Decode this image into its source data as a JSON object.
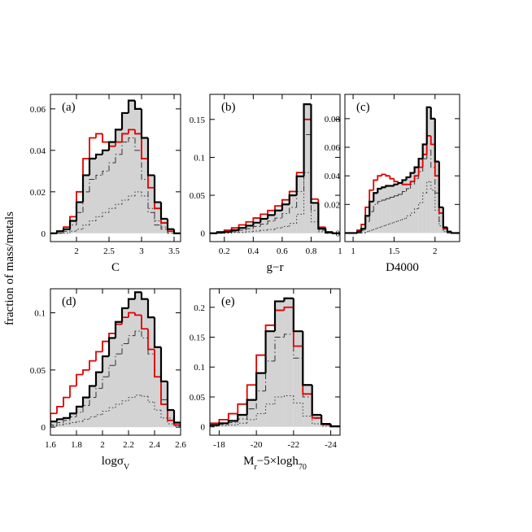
{
  "ylabel": "fraction of mass/metals",
  "chart_data": [
    {
      "type": "histogram",
      "label": "(a)",
      "xlabel": [
        "C"
      ],
      "bins": [
        1.6,
        1.7,
        1.8,
        1.9,
        2.0,
        2.1,
        2.2,
        2.3,
        2.4,
        2.5,
        2.6,
        2.7,
        2.8,
        2.9,
        3.0,
        3.1,
        3.2,
        3.3,
        3.4,
        3.5,
        3.6
      ],
      "xlim": [
        1.6,
        3.6
      ],
      "xticks": [
        2,
        2.5,
        3,
        3.5
      ],
      "ylim": [
        -0.004,
        0.067
      ],
      "yticks": [
        0,
        0.02,
        0.04,
        0.06
      ],
      "series": [
        {
          "color": "#000000",
          "fill": "#d3d3d3",
          "style": "thick",
          "values": [
            0,
            0.001,
            0.002,
            0.006,
            0.015,
            0.028,
            0.036,
            0.038,
            0.04,
            0.044,
            0.05,
            0.058,
            0.064,
            0.06,
            0.046,
            0.028,
            0.015,
            0.007,
            0.002,
            0
          ]
        },
        {
          "color": "#e00000",
          "style": "solid",
          "values": [
            0,
            0.001,
            0.003,
            0.008,
            0.02,
            0.036,
            0.046,
            0.048,
            0.044,
            0.042,
            0.044,
            0.048,
            0.05,
            0.048,
            0.036,
            0.022,
            0.012,
            0.005,
            0.001,
            0
          ]
        },
        {
          "color": "#333333",
          "style": "dashdot",
          "values": [
            0,
            0,
            0.001,
            0.004,
            0.01,
            0.02,
            0.026,
            0.028,
            0.03,
            0.034,
            0.038,
            0.044,
            0.046,
            0.04,
            0.026,
            0.01,
            0.004,
            0.002,
            0,
            0
          ]
        },
        {
          "color": "#333333",
          "style": "dotted",
          "values": [
            0,
            0,
            0,
            0.001,
            0.002,
            0.004,
            0.006,
            0.008,
            0.01,
            0.012,
            0.014,
            0.016,
            0.018,
            0.02,
            0.018,
            0.012,
            0.006,
            0.003,
            0.001,
            0
          ]
        }
      ]
    },
    {
      "type": "histogram",
      "label": "(b)",
      "xlabel": [
        "g−r"
      ],
      "bins": [
        0.1,
        0.15,
        0.2,
        0.25,
        0.3,
        0.35,
        0.4,
        0.45,
        0.5,
        0.55,
        0.6,
        0.65,
        0.7,
        0.75,
        0.8,
        0.85,
        0.9,
        0.95,
        1.0
      ],
      "xlim": [
        0.1,
        1.0
      ],
      "xticks": [
        0.2,
        0.4,
        0.6,
        0.8,
        1
      ],
      "ylim": [
        -0.011,
        0.183
      ],
      "yticks": [
        0,
        0.05,
        0.1,
        0.15
      ],
      "series": [
        {
          "color": "#000000",
          "fill": "#d3d3d3",
          "style": "thick",
          "values": [
            0,
            0.001,
            0.002,
            0.004,
            0.007,
            0.01,
            0.014,
            0.019,
            0.024,
            0.03,
            0.038,
            0.05,
            0.075,
            0.17,
            0.04,
            0.006,
            0.001,
            0
          ]
        },
        {
          "color": "#e00000",
          "style": "solid",
          "values": [
            0,
            0.002,
            0.004,
            0.007,
            0.011,
            0.015,
            0.02,
            0.025,
            0.03,
            0.036,
            0.044,
            0.055,
            0.08,
            0.15,
            0.045,
            0.008,
            0.002,
            0
          ]
        },
        {
          "color": "#333333",
          "style": "dashdot",
          "values": [
            0,
            0,
            0.001,
            0.002,
            0.004,
            0.006,
            0.009,
            0.012,
            0.016,
            0.02,
            0.026,
            0.034,
            0.055,
            0.13,
            0.03,
            0.004,
            0,
            0
          ]
        },
        {
          "color": "#333333",
          "style": "dotted",
          "values": [
            0,
            0,
            0,
            0.001,
            0.001,
            0.002,
            0.003,
            0.004,
            0.005,
            0.007,
            0.009,
            0.013,
            0.025,
            0.08,
            0.015,
            0.002,
            0,
            0
          ]
        }
      ]
    },
    {
      "type": "histogram",
      "label": "(c)",
      "xlabel": [
        "D4000"
      ],
      "bins": [
        0.9,
        0.95,
        1,
        1.05,
        1.1,
        1.15,
        1.2,
        1.25,
        1.3,
        1.35,
        1.4,
        1.45,
        1.5,
        1.55,
        1.6,
        1.65,
        1.7,
        1.75,
        1.8,
        1.85,
        1.9,
        1.95,
        2,
        2.05,
        2.1,
        2.15,
        2.2,
        2.25,
        2.3
      ],
      "xlim": [
        0.9,
        2.3
      ],
      "xticks": [
        1,
        1.5,
        2
      ],
      "ylim": [
        -0.006,
        0.097
      ],
      "yticks": [
        0,
        0.02,
        0.04,
        0.06,
        0.08
      ],
      "series": [
        {
          "color": "#000000",
          "fill": "#d3d3d3",
          "style": "thick",
          "values": [
            0,
            0,
            0,
            0.001,
            0.003,
            0.012,
            0.022,
            0.028,
            0.031,
            0.032,
            0.033,
            0.033,
            0.034,
            0.035,
            0.037,
            0.039,
            0.042,
            0.046,
            0.052,
            0.062,
            0.088,
            0.08,
            0.05,
            0.018,
            0.004,
            0.001,
            0,
            0
          ]
        },
        {
          "color": "#e00000",
          "style": "solid",
          "values": [
            0,
            0,
            0,
            0.002,
            0.006,
            0.018,
            0.03,
            0.037,
            0.04,
            0.041,
            0.04,
            0.038,
            0.036,
            0.035,
            0.034,
            0.034,
            0.036,
            0.04,
            0.046,
            0.055,
            0.068,
            0.062,
            0.04,
            0.014,
            0.003,
            0.001,
            0,
            0
          ]
        },
        {
          "color": "#333333",
          "style": "dashdot",
          "values": [
            0,
            0,
            0,
            0,
            0.002,
            0.008,
            0.015,
            0.02,
            0.022,
            0.023,
            0.024,
            0.025,
            0.026,
            0.027,
            0.029,
            0.031,
            0.034,
            0.038,
            0.043,
            0.052,
            0.058,
            0.046,
            0.028,
            0.008,
            0.002,
            0,
            0,
            0
          ]
        },
        {
          "color": "#333333",
          "style": "dotted",
          "values": [
            0,
            0,
            0,
            0,
            0,
            0.001,
            0.002,
            0.003,
            0.004,
            0.005,
            0.006,
            0.007,
            0.008,
            0.009,
            0.01,
            0.012,
            0.014,
            0.017,
            0.021,
            0.028,
            0.036,
            0.03,
            0.016,
            0.005,
            0.001,
            0,
            0,
            0
          ]
        }
      ]
    },
    {
      "type": "histogram",
      "label": "(d)",
      "xlabel": [
        "logσ",
        "V"
      ],
      "bins": [
        1.6,
        1.65,
        1.7,
        1.75,
        1.8,
        1.85,
        1.9,
        1.95,
        2,
        2.05,
        2.1,
        2.15,
        2.2,
        2.25,
        2.3,
        2.35,
        2.4,
        2.45,
        2.5,
        2.55,
        2.6
      ],
      "xlim": [
        1.6,
        2.6
      ],
      "xticks": [
        1.6,
        1.8,
        2,
        2.2,
        2.4,
        2.6
      ],
      "ylim": [
        -0.007,
        0.121
      ],
      "yticks": [
        0,
        0.05,
        0.1
      ],
      "series": [
        {
          "color": "#000000",
          "fill": "#d3d3d3",
          "style": "thick",
          "values": [
            0.005,
            0.007,
            0.008,
            0.012,
            0.018,
            0.026,
            0.036,
            0.048,
            0.062,
            0.078,
            0.092,
            0.104,
            0.112,
            0.118,
            0.112,
            0.096,
            0.07,
            0.04,
            0.015,
            0.004
          ]
        },
        {
          "color": "#e00000",
          "style": "solid",
          "values": [
            0.012,
            0.018,
            0.026,
            0.036,
            0.046,
            0.05,
            0.058,
            0.066,
            0.075,
            0.082,
            0.09,
            0.096,
            0.1,
            0.098,
            0.086,
            0.068,
            0.044,
            0.02,
            0.006,
            0.002
          ]
        },
        {
          "color": "#333333",
          "style": "dashdot",
          "values": [
            0.002,
            0.004,
            0.006,
            0.009,
            0.013,
            0.019,
            0.026,
            0.034,
            0.044,
            0.054,
            0.064,
            0.073,
            0.08,
            0.084,
            0.078,
            0.064,
            0.044,
            0.024,
            0.008,
            0.002
          ]
        },
        {
          "color": "#333333",
          "style": "dotted",
          "values": [
            0.001,
            0.002,
            0.003,
            0.004,
            0.005,
            0.007,
            0.009,
            0.011,
            0.014,
            0.017,
            0.02,
            0.023,
            0.026,
            0.028,
            0.027,
            0.022,
            0.015,
            0.008,
            0.003,
            0.001
          ]
        }
      ]
    },
    {
      "type": "histogram",
      "label": "(e)",
      "xlabel": [
        "M",
        "r",
        "−5×logh",
        "70"
      ],
      "bins": [
        -17.5,
        -18,
        -18.5,
        -19,
        -19.5,
        -20,
        -20.5,
        -21,
        -21.5,
        -22,
        -22.5,
        -23,
        -23.5,
        -24,
        -24.5
      ],
      "xlim": [
        -17.5,
        -24.5
      ],
      "xticks": [
        -18,
        -20,
        -22,
        -24
      ],
      "ylim": [
        -0.014,
        0.231
      ],
      "yticks": [
        0,
        0.05,
        0.1,
        0.15,
        0.2
      ],
      "series": [
        {
          "color": "#000000",
          "fill": "#d3d3d3",
          "style": "thick",
          "values": [
            0.003,
            0.006,
            0.01,
            0.02,
            0.045,
            0.09,
            0.16,
            0.21,
            0.215,
            0.16,
            0.07,
            0.02,
            0.005,
            0.001
          ]
        },
        {
          "color": "#e00000",
          "style": "solid",
          "values": [
            0.006,
            0.012,
            0.022,
            0.038,
            0.07,
            0.12,
            0.17,
            0.195,
            0.2,
            0.135,
            0.055,
            0.015,
            0.004,
            0.001
          ]
        },
        {
          "color": "#333333",
          "style": "dashdot",
          "values": [
            0.002,
            0.004,
            0.007,
            0.013,
            0.03,
            0.06,
            0.11,
            0.15,
            0.155,
            0.115,
            0.05,
            0.014,
            0.003,
            0
          ]
        },
        {
          "color": "#333333",
          "style": "dotted",
          "values": [
            0.001,
            0.002,
            0.003,
            0.006,
            0.012,
            0.022,
            0.038,
            0.05,
            0.052,
            0.04,
            0.018,
            0.005,
            0.001,
            0
          ]
        }
      ]
    }
  ]
}
